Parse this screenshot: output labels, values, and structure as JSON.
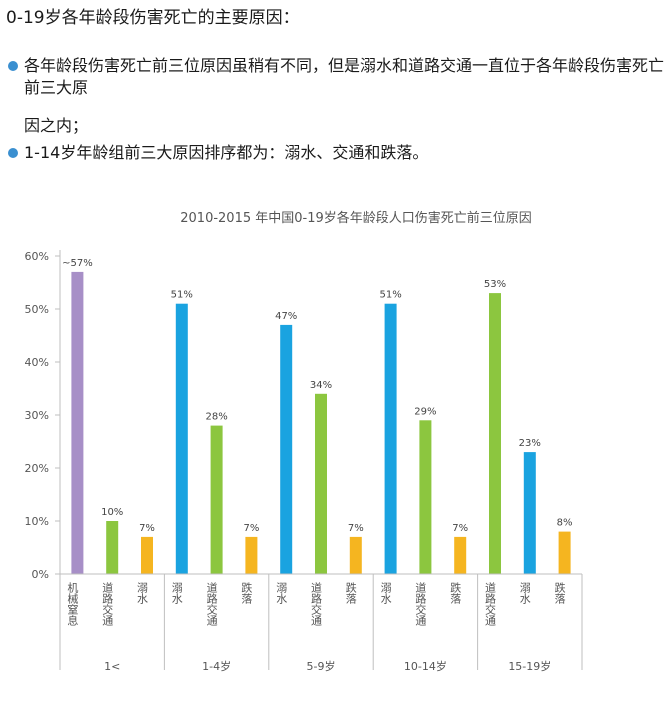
{
  "heading": "0-19岁各年龄段伤害死亡的主要原因：",
  "bullets": [
    {
      "line1": "各年龄段伤害死亡前三位原因虽稍有不同，但是溺水和道路交通一直位于各年龄段伤害死亡前三大原",
      "line2": "因之内；"
    },
    {
      "line1": "1-14岁年龄组前三大原因排序都为：溺水、交通和跌落。",
      "line2": ""
    }
  ],
  "colors": {
    "accent": "#3a8fd0",
    "机械窒息": "#a78fc7",
    "溺水": "#1aa3e0",
    "道路交通": "#8cc63f",
    "跌落": "#f5b520",
    "axis": "#bfbfbf",
    "grid": "#e6e6e6",
    "text": "#555555"
  },
  "chart_data": {
    "type": "bar",
    "title": "2010-2015 年中国0-19岁各年龄段人口伤害死亡前三位原因",
    "ylim": [
      0,
      60
    ],
    "yticks": [
      "0%",
      "10%",
      "20%",
      "30%",
      "40%",
      "50%",
      "60%"
    ],
    "grid": false,
    "groups": [
      {
        "label": "1<",
        "bars": [
          {
            "cause": "机械窒息",
            "value": 57,
            "label": "~57%"
          },
          {
            "cause": "道路交通",
            "value": 10,
            "label": "10%"
          },
          {
            "cause": "溺水",
            "value": 7,
            "label": "7%",
            "color_as": "跌落"
          }
        ]
      },
      {
        "label": "1-4岁",
        "bars": [
          {
            "cause": "溺水",
            "value": 51,
            "label": "51%"
          },
          {
            "cause": "道路交通",
            "value": 28,
            "label": "28%"
          },
          {
            "cause": "跌落",
            "value": 7,
            "label": "7%"
          }
        ]
      },
      {
        "label": "5-9岁",
        "bars": [
          {
            "cause": "溺水",
            "value": 47,
            "label": "47%"
          },
          {
            "cause": "道路交通",
            "value": 34,
            "label": "34%"
          },
          {
            "cause": "跌落",
            "value": 7,
            "label": "7%"
          }
        ]
      },
      {
        "label": "10-14岁",
        "bars": [
          {
            "cause": "溺水",
            "value": 51,
            "label": "51%"
          },
          {
            "cause": "道路交通",
            "value": 29,
            "label": "29%"
          },
          {
            "cause": "跌落",
            "value": 7,
            "label": "7%"
          }
        ]
      },
      {
        "label": "15-19岁",
        "bars": [
          {
            "cause": "道路交通",
            "value": 53,
            "label": "53%"
          },
          {
            "cause": "溺水",
            "value": 23,
            "label": "23%"
          },
          {
            "cause": "跌落",
            "value": 8,
            "label": "8%"
          }
        ]
      }
    ]
  }
}
